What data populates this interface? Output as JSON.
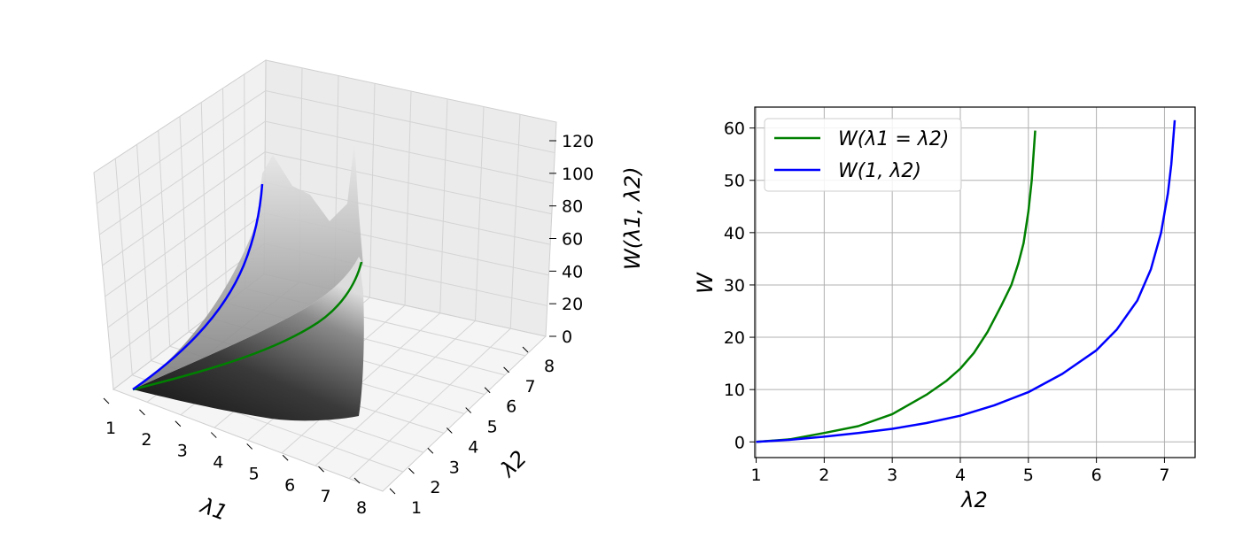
{
  "chart_data": [
    {
      "type": "surface3d",
      "xlabel": "λ1",
      "ylabel": "λ2",
      "zlabel": "W(λ1, λ2)",
      "xticks": [
        "1",
        "2",
        "3",
        "4",
        "5",
        "6",
        "7",
        "8"
      ],
      "yticks": [
        "1",
        "2",
        "3",
        "4",
        "5",
        "6",
        "7",
        "8"
      ],
      "zticks": [
        "0",
        "20",
        "40",
        "60",
        "80",
        "100",
        "120"
      ],
      "xlim": [
        1,
        8
      ],
      "ylim": [
        1,
        8
      ],
      "zlim": [
        0,
        120
      ],
      "surface_color": "gray",
      "series": [
        {
          "name": "W(λ1 = λ2)",
          "color": "#008000"
        },
        {
          "name": "W(1, λ2)",
          "color": "#0000ff"
        }
      ]
    },
    {
      "type": "line",
      "xlabel": "λ2",
      "ylabel": "W",
      "xlim": [
        0.98,
        7.45
      ],
      "ylim": [
        -3,
        64
      ],
      "xticks": [
        1,
        2,
        3,
        4,
        5,
        6,
        7
      ],
      "yticks": [
        0,
        10,
        20,
        30,
        40,
        50,
        60
      ],
      "grid": true,
      "legend": "top-left",
      "series": [
        {
          "name": "W(λ1 = λ2)",
          "color": "#008000",
          "x": [
            1.0,
            1.5,
            2.0,
            2.5,
            3.0,
            3.5,
            3.8,
            4.0,
            4.2,
            4.4,
            4.6,
            4.75,
            4.85,
            4.93,
            5.0,
            5.05,
            5.1
          ],
          "y": [
            0,
            0.5,
            1.7,
            3.0,
            5.3,
            9.0,
            11.7,
            14.0,
            17.0,
            21.0,
            26.0,
            30.0,
            34.0,
            38.0,
            44.0,
            50.0,
            59.5
          ]
        },
        {
          "name": "W(1, λ2)",
          "color": "#0000ff",
          "x": [
            1.0,
            1.5,
            2.0,
            2.5,
            3.0,
            3.5,
            4.0,
            4.5,
            5.0,
            5.5,
            6.0,
            6.3,
            6.6,
            6.8,
            6.95,
            7.05,
            7.1,
            7.15
          ],
          "y": [
            0,
            0.4,
            1.0,
            1.7,
            2.5,
            3.6,
            5.0,
            7.0,
            9.5,
            13.0,
            17.5,
            21.5,
            27.0,
            33.0,
            40.0,
            47.5,
            53.0,
            61.5
          ]
        }
      ]
    }
  ]
}
